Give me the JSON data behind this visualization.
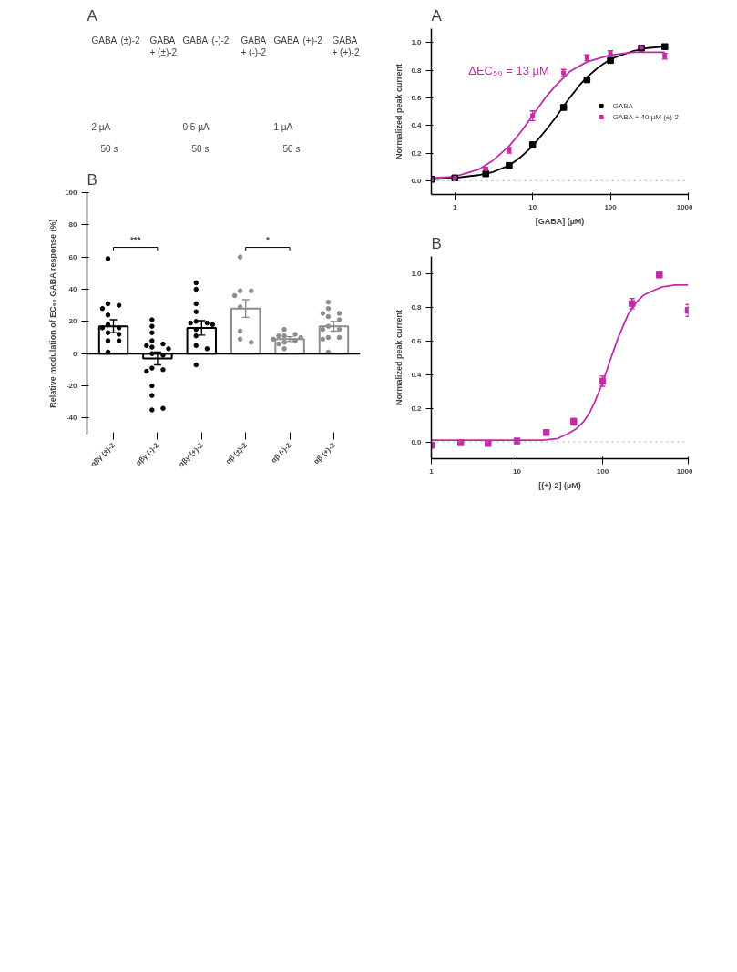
{
  "chart_data": [
    {
      "type": "other",
      "title": "A",
      "annotations": [
        "GABA",
        "(±)-2",
        "GABA\n+ (±)-2",
        "2 µA",
        "50 s",
        "GABA",
        "(-)-2",
        "GABA\n+ (-)-2",
        "0.5 µA",
        "50 s",
        "GABA",
        "(+)-2",
        "GABA\n+ (+)-2",
        "1 µA",
        "50 s"
      ]
    },
    {
      "type": "bar",
      "title": "B",
      "ylabel": "Relative modulation of EC₅₀ GABA response (%)",
      "categories": [
        "αβγ (±)-2",
        "αβγ (-)-2",
        "αβγ (+)-2",
        "αβ (±)-2",
        "αβ (-)-2",
        "αβ (+)-2"
      ],
      "ylim": [
        -50,
        100
      ],
      "yticks": [
        -40,
        -20,
        0,
        20,
        40,
        60,
        80,
        100
      ],
      "annotations": [
        "***",
        "*"
      ],
      "series": [
        {
          "type": "bar",
          "colors": [
            "#000000",
            "#000000",
            "#000000",
            "#8c8c8c",
            "#8c8c8c",
            "#8c8c8c"
          ],
          "values": [
            17,
            -3,
            16,
            28,
            9,
            17
          ],
          "errors": [
            4,
            4,
            4.5,
            5.5,
            1.5,
            3
          ]
        },
        {
          "type": "scatter",
          "color": "#000000",
          "x": [
            "αβγ (±)-2",
            "αβγ (±)-2",
            "αβγ (±)-2",
            "αβγ (±)-2",
            "αβγ (±)-2",
            "αβγ (±)-2",
            "αβγ (±)-2",
            "αβγ (±)-2",
            "αβγ (±)-2",
            "αβγ (±)-2",
            "αβγ (±)-2",
            "αβγ (±)-2",
            "αβγ (±)-2",
            "αβγ (-)-2",
            "αβγ (-)-2",
            "αβγ (-)-2",
            "αβγ (-)-2",
            "αβγ (-)-2",
            "αβγ (-)-2",
            "αβγ (-)-2",
            "αβγ (-)-2",
            "αβγ (-)-2",
            "αβγ (-)-2",
            "αβγ (-)-2",
            "αβγ (-)-2",
            "αβγ (-)-2",
            "αβγ (-)-2",
            "αβγ (-)-2",
            "αβγ (-)-2",
            "αβγ (-)-2",
            "αβγ (+)-2",
            "αβγ (+)-2",
            "αβγ (+)-2",
            "αβγ (+)-2",
            "αβγ (+)-2",
            "αβγ (+)-2",
            "αβγ (+)-2",
            "αβγ (+)-2",
            "αβγ (+)-2",
            "αβγ (+)-2",
            "αβγ (+)-2",
            "αβγ (+)-2",
            "αβγ (+)-2"
          ],
          "values": [
            59,
            31,
            30,
            28,
            24,
            18,
            16,
            16,
            13,
            12,
            8,
            8,
            1,
            21,
            17,
            13,
            8,
            6,
            5,
            4,
            3,
            0,
            -1,
            -9,
            -10,
            -11,
            -20,
            -26,
            -35,
            -34,
            44,
            40,
            31,
            26,
            20,
            19,
            19,
            18,
            15,
            11,
            5,
            3,
            -7
          ]
        },
        {
          "type": "scatter",
          "color": "#8c8c8c",
          "x": [
            "αβ (±)-2",
            "αβ (±)-2",
            "αβ (±)-2",
            "αβ (±)-2",
            "αβ (±)-2",
            "αβ (±)-2",
            "αβ (±)-2",
            "αβ (±)-2",
            "αβ (-)-2",
            "αβ (-)-2",
            "αβ (-)-2",
            "αβ (-)-2",
            "αβ (-)-2",
            "αβ (-)-2",
            "αβ (-)-2",
            "αβ (-)-2",
            "αβ (-)-2",
            "αβ (-)-2",
            "αβ (+)-2",
            "αβ (+)-2",
            "αβ (+)-2",
            "αβ (+)-2",
            "αβ (+)-2",
            "αβ (+)-2",
            "αβ (+)-2",
            "αβ (+)-2",
            "αβ (+)-2",
            "αβ (+)-2",
            "αβ (+)-2",
            "αβ (+)-2",
            "αβ (+)-2"
          ],
          "values": [
            60,
            39,
            39,
            36,
            29,
            14,
            9,
            7,
            15,
            12,
            11,
            11,
            10,
            9,
            8,
            7,
            6,
            3,
            32,
            28,
            25,
            25,
            23,
            21,
            17,
            15,
            15,
            10,
            10,
            9,
            1
          ]
        }
      ]
    },
    {
      "type": "line",
      "title": "A",
      "xlabel": "[GABA] (µM)",
      "ylabel": "Normalized peak current",
      "log": "x",
      "xlim": [
        0.5,
        1000
      ],
      "xticks": [
        1,
        10,
        100,
        1000
      ],
      "ylim": [
        -0.1,
        1.1
      ],
      "yticks": [
        {
          "value": 0,
          "label": "0.0"
        },
        {
          "value": 0.2,
          "label": "0.2"
        },
        {
          "value": 0.4,
          "label": "0.4"
        },
        {
          "value": 0.6,
          "label": "0.6"
        },
        {
          "value": 0.8,
          "label": "0.8"
        },
        {
          "value": 1,
          "label": "1.0"
        }
      ],
      "grid": false,
      "legend": "right",
      "annotations": [
        "ΔEC₅₀ = 13 µM"
      ],
      "ref_lines": [
        {
          "axis": "y",
          "value": 0,
          "color": "#aaaaaa",
          "line_style": "dotted"
        }
      ],
      "series": [
        {
          "type": "line",
          "marker": "none",
          "color": "#000000",
          "x": [
            0.5,
            1,
            2,
            3,
            5,
            7,
            10,
            15,
            20,
            25,
            30,
            40,
            50,
            70,
            100,
            200,
            300,
            500
          ],
          "values": [
            0.01,
            0.02,
            0.04,
            0.06,
            0.11,
            0.17,
            0.25,
            0.37,
            0.46,
            0.54,
            0.6,
            0.69,
            0.75,
            0.82,
            0.88,
            0.94,
            0.96,
            0.97
          ]
        },
        {
          "type": "line",
          "marker": "none",
          "color": "#c02ca8",
          "x": [
            0.5,
            1,
            2,
            3,
            5,
            7,
            10,
            15,
            20,
            30,
            50,
            100,
            200,
            500
          ],
          "values": [
            0.02,
            0.03,
            0.08,
            0.14,
            0.25,
            0.35,
            0.47,
            0.61,
            0.69,
            0.79,
            0.86,
            0.91,
            0.93,
            0.93
          ]
        },
        {
          "type": "scatter",
          "marker": "square",
          "name": "GABA",
          "color": "#000000",
          "x": [
            0.5,
            1,
            2.5,
            5,
            10,
            25,
            50,
            100,
            250,
            500
          ],
          "values": [
            0.01,
            0.02,
            0.05,
            0.11,
            0.26,
            0.53,
            0.73,
            0.87,
            0.96,
            0.97
          ],
          "errors": [
            0.005,
            0.005,
            0.005,
            0.005,
            0.015,
            0.015,
            0.015,
            0.01,
            0.01,
            0.01
          ]
        },
        {
          "type": "scatter",
          "marker": "square",
          "name": "GABA + 40 µM (±)-2",
          "color": "#c02ca8",
          "x": [
            0.5,
            1,
            2.5,
            5,
            10,
            25,
            50,
            100,
            250,
            500
          ],
          "values": [
            0.01,
            0.02,
            0.085,
            0.22,
            0.47,
            0.78,
            0.89,
            0.92,
            0.965,
            0.9
          ],
          "errors": [
            0.005,
            0.005,
            0.01,
            0.02,
            0.035,
            0.025,
            0.02,
            0.02,
            0.01,
            0.02
          ]
        }
      ]
    },
    {
      "type": "line",
      "title": "B",
      "xlabel": "[(+)-2] (µM)",
      "ylabel": "Normalized peak current",
      "log": "x",
      "xlim": [
        1,
        1000
      ],
      "xticks": [
        1,
        10,
        100,
        1000
      ],
      "ylim": [
        -0.1,
        1.1
      ],
      "yticks": [
        {
          "value": 0,
          "label": "0.0"
        },
        {
          "value": 0.2,
          "label": "0.2"
        },
        {
          "value": 0.4,
          "label": "0.4"
        },
        {
          "value": 0.6,
          "label": "0.6"
        },
        {
          "value": 0.8,
          "label": "0.8"
        },
        {
          "value": 1,
          "label": "1.0"
        }
      ],
      "grid": false,
      "ref_lines": [
        {
          "axis": "y",
          "value": 0,
          "color": "#aaaaaa",
          "line_style": "dotted"
        }
      ],
      "series": [
        {
          "type": "line",
          "marker": "none",
          "color": "#c02ca8",
          "x": [
            1,
            10,
            20,
            30,
            40,
            50,
            60,
            70,
            80,
            100,
            120,
            150,
            200,
            250,
            300,
            400,
            500,
            700,
            1000
          ],
          "values": [
            0.01,
            0.01,
            0.01,
            0.02,
            0.05,
            0.08,
            0.12,
            0.17,
            0.23,
            0.35,
            0.47,
            0.61,
            0.76,
            0.83,
            0.87,
            0.9,
            0.92,
            0.93,
            0.93
          ]
        },
        {
          "type": "scatter",
          "marker": "square",
          "color": "#c02ca8",
          "x": [
            1,
            2.2,
            4.6,
            10,
            22,
            46,
            100,
            220,
            460,
            1000
          ],
          "values": [
            -0.02,
            -0.005,
            -0.01,
            0.005,
            0.055,
            0.12,
            0.36,
            0.82,
            0.99,
            0.78
          ],
          "errors": [
            0.01,
            0.005,
            0.01,
            0.005,
            0.01,
            0.02,
            0.03,
            0.03,
            null,
            0.035
          ]
        }
      ]
    }
  ]
}
